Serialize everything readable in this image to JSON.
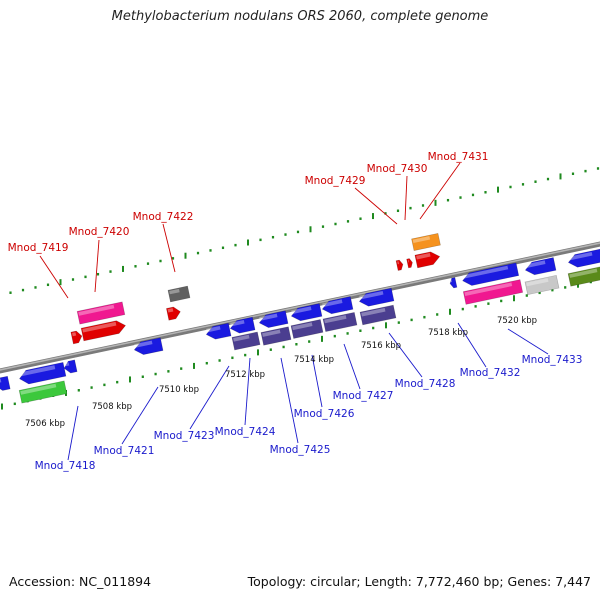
{
  "title": "Methylobacterium nodulans ORS 2060, complete genome",
  "accession": "Accession: NC_011894",
  "topology": "Topology: circular; Length: 7,772,460 bp; Genes: 7,447",
  "colors": {
    "backbone": "#8a8a8a",
    "tick": "#1f8a1f",
    "label_top": "#cc0000",
    "label_bottom": "#1a1acc",
    "blue": "#1a1ae0",
    "red": "#e00000",
    "pink": "#f01890",
    "gray": "#606060",
    "orange": "#f5921e",
    "slate": "#4b3e90",
    "green": "#3cc83c",
    "lightgray": "#c8c8c8",
    "olive": "#5a8a1a"
  },
  "kbp_labels": [
    "7506 kbp",
    "7508 kbp",
    "7510 kbp",
    "7512 kbp",
    "7514 kbp",
    "7516 kbp",
    "7518 kbp",
    "7520 kbp"
  ],
  "top_labels": [
    "Mnod_7419",
    "Mnod_7420",
    "Mnod_7422",
    "Mnod_7429",
    "Mnod_7430",
    "Mnod_7431"
  ],
  "bottom_labels": [
    "Mnod_7418",
    "Mnod_7421",
    "Mnod_7423",
    "Mnod_7424",
    "Mnod_7425",
    "Mnod_7426",
    "Mnod_7427",
    "Mnod_7428",
    "Mnod_7432",
    "Mnod_7433"
  ]
}
